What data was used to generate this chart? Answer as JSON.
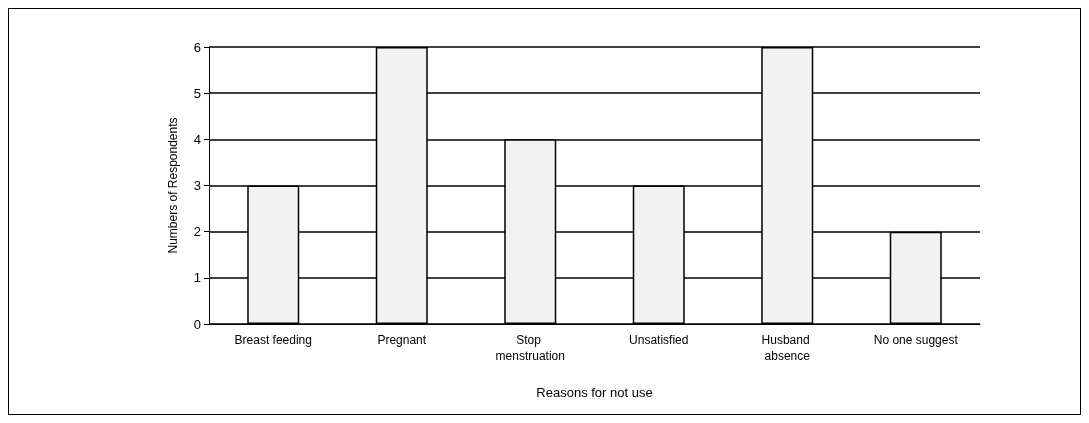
{
  "chart_data": {
    "type": "bar",
    "xlabel": "Reasons for not use",
    "ylabel": "Numbers of Respondents",
    "categories": [
      "Breast feeding",
      "Pregnant",
      "Stop menstruation",
      "Unsatisfied",
      "Husband absence",
      "No one suggest"
    ],
    "values": [
      3,
      6,
      4,
      3,
      6,
      2
    ],
    "color": "#f2f2f2",
    "ylim": [
      0,
      6
    ],
    "yticks": [
      0,
      1,
      2,
      3,
      4,
      5,
      6
    ],
    "grid": "y"
  }
}
